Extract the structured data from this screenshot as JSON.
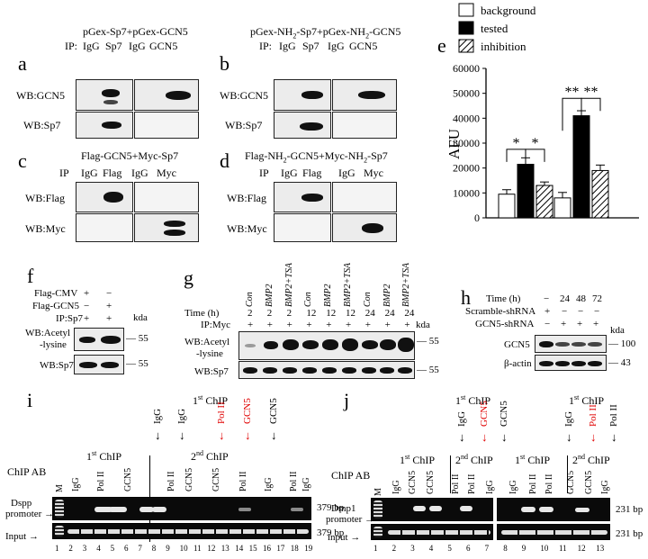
{
  "panels": {
    "a": {
      "letter": "a",
      "title": "pGex-Sp7+pGex-GCN5",
      "ip": "IP:",
      "lanes": [
        "IgG",
        "Sp7",
        "IgG",
        "GCN5"
      ],
      "wb": [
        "WB:GCN5",
        "WB:Sp7"
      ]
    },
    "b": {
      "letter": "b",
      "title": "pGex-NH",
      "title_sub1": "2",
      "title_mid": "-Sp7+pGex-NH",
      "title_sub2": "2",
      "title_end": "-GCN5",
      "ip": "IP:",
      "lanes": [
        "IgG",
        "Sp7",
        "IgG",
        "GCN5"
      ],
      "wb": [
        "WB:GCN5",
        "WB:Sp7"
      ]
    },
    "c": {
      "letter": "c",
      "title": "Flag-GCN5+Myc-Sp7",
      "ip": "IP",
      "lanes": [
        "IgG",
        "Flag",
        "IgG",
        "Myc"
      ],
      "wb": [
        "WB:Flag",
        "WB:Myc"
      ]
    },
    "d": {
      "letter": "d",
      "title": "Flag-NH",
      "title_sub1": "2",
      "title_mid": "-GCN5+Myc-NH",
      "title_sub2": "2",
      "title_end": "-Sp7",
      "ip": "IP",
      "lanes": [
        "IgG",
        "Flag",
        "IgG",
        "Myc"
      ],
      "wb": [
        "WB:Flag",
        "WB:Myc"
      ]
    },
    "f": {
      "letter": "f",
      "rows": [
        "Flag-CMV",
        "Flag-GCN5",
        "IP:Sp7"
      ],
      "signs": [
        [
          "+",
          "−"
        ],
        [
          "−",
          "+"
        ],
        [
          "+",
          "+"
        ]
      ],
      "kda": "kda",
      "wb1": "WB:Acetyl",
      "wb1b": "-lysine",
      "wb2": "WB:Sp7",
      "markers": [
        "55",
        "55"
      ]
    },
    "g": {
      "letter": "g",
      "conds": [
        "Con",
        "BMP2",
        "BMP2+TSA",
        "Con",
        "BMP2",
        "BMP2+TSA",
        "Con",
        "BMP2",
        "BMP2+TSA"
      ],
      "time_label": "Time (h)",
      "times": [
        "2",
        "2",
        "2",
        "12",
        "12",
        "12",
        "24",
        "24",
        "24"
      ],
      "ip": "IP:Myc",
      "plus": "+",
      "kda": "kda",
      "wb1": "WB:Acetyl",
      "wb1b": "-lysine",
      "wb2": "WB:Sp7",
      "markers": [
        "55",
        "55"
      ]
    },
    "h": {
      "letter": "h",
      "time_label": "Time (h)",
      "times": [
        "−",
        "24",
        "48",
        "72"
      ],
      "scramble": "Scramble-shRNA",
      "scramble_signs": [
        "+",
        "−",
        "−",
        "−"
      ],
      "gcn5": "GCN5-shRNA",
      "gcn5_signs": [
        "−",
        "+",
        "+",
        "+"
      ],
      "kda": "kda",
      "rows": [
        "GCN5",
        "β-actin"
      ],
      "markers": [
        "100",
        "43"
      ]
    },
    "i": {
      "letter": "i",
      "first_chip": "1",
      "first_chip_sup": "st",
      "first_chip_end": " ChIP",
      "second_chip": "2",
      "second_chip_sup": "nd",
      "second_chip_end": " ChIP",
      "top_labels": [
        "IgG",
        "IgG",
        "Pol II",
        "GCN5",
        "GCN5"
      ],
      "chip_ab": "ChIP AB",
      "lane_labels": [
        "M",
        "IgG",
        "Pol II",
        "GCN5",
        "Pol II",
        "GCN5",
        "GCN5",
        "Pol II",
        "IgG",
        "Pol II",
        "IgG"
      ],
      "row1": "Dspp",
      "row1b": "promoter",
      "row2": "Input",
      "bp": [
        "379 bp",
        "379 bp"
      ],
      "numbers": [
        "1",
        "2",
        "3",
        "4",
        "5",
        "6",
        "7",
        "8",
        "9",
        "10",
        "11",
        "12",
        "13",
        "14",
        "15",
        "16",
        "17",
        "18",
        "19"
      ]
    },
    "j": {
      "letter": "j",
      "first_chip": "1",
      "first_chip_sup": "st",
      "first_chip_end": " ChIP",
      "second_chip": "2",
      "second_chip_sup": "nd",
      "second_chip_end": " ChIP",
      "top_left": [
        "IgG",
        "GCN5",
        "GCN5"
      ],
      "top_right": [
        "IgG",
        "Pol II",
        "Pol II"
      ],
      "chip_ab": "ChIP AB",
      "lane_labels_left": [
        "M",
        "IgG",
        "GCN5",
        "GCN5",
        "Pol II",
        "Pol II",
        "IgG"
      ],
      "lane_labels_right": [
        "IgG",
        "Pol II",
        "Pol II",
        "GCN5",
        "GCN5",
        "IgG"
      ],
      "row1": "Dmp1",
      "row1b": "promoter",
      "row2": "input",
      "bp": [
        "231 bp",
        "231 bp"
      ],
      "numbers": [
        "1",
        "2",
        "3",
        "4",
        "5",
        "6",
        "7",
        "8",
        "9",
        "10",
        "11",
        "12",
        "13"
      ]
    }
  },
  "chart_data": {
    "type": "bar",
    "panel_letter": "e",
    "ylabel": "AFU",
    "ylim": [
      0,
      60000
    ],
    "yticks": [
      0,
      10000,
      20000,
      30000,
      40000,
      50000,
      60000
    ],
    "legend": [
      "background",
      "tested",
      "inhibition"
    ],
    "legend_position": "top-right",
    "groups": [
      {
        "values": [
          9500,
          21500,
          13000
        ],
        "errors": [
          1800,
          2600,
          1400
        ]
      },
      {
        "values": [
          8000,
          41000,
          19000
        ],
        "errors": [
          2200,
          2000,
          2200
        ]
      }
    ],
    "series": [
      {
        "name": "background",
        "color": "#ffffff"
      },
      {
        "name": "tested",
        "color": "#000000"
      },
      {
        "name": "inhibition",
        "color": "hatch"
      }
    ],
    "significance": [
      "*",
      "*",
      "**",
      "**"
    ]
  }
}
